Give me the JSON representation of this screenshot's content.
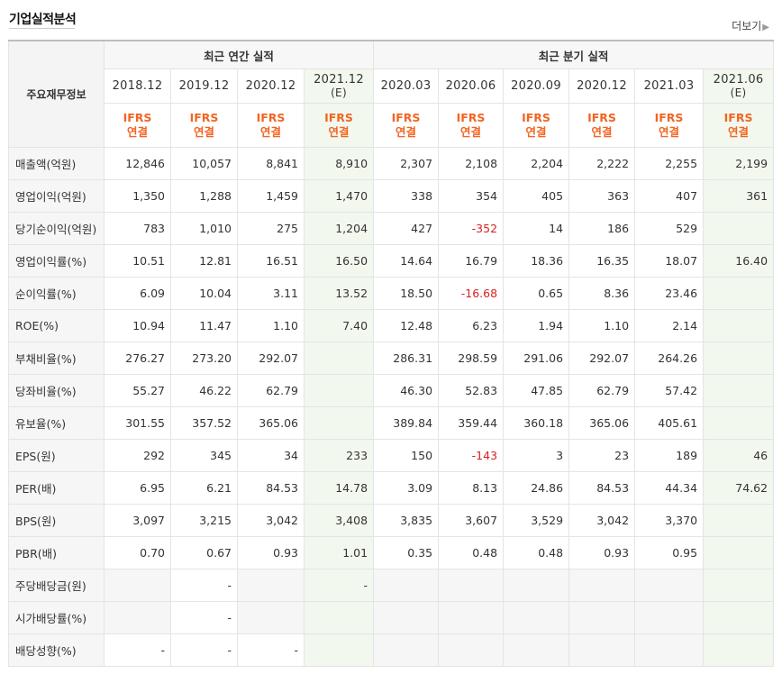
{
  "title": "기업실적분석",
  "more_label": "더보기",
  "more_arrow": "▶",
  "header": {
    "row_label": "주요재무정보",
    "annual_group": "최근 연간 실적",
    "quarterly_group": "최근 분기 실적",
    "periods": [
      "2018.12",
      "2019.12",
      "2020.12",
      "2021.12",
      "2020.03",
      "2020.06",
      "2020.09",
      "2020.12",
      "2021.03",
      "2021.06"
    ],
    "estimate_mark": "(E)",
    "ifrs_line1": "IFRS",
    "ifrs_line2": "연결"
  },
  "rows": [
    {
      "label": "매출액(억원)",
      "values": [
        "12,846",
        "10,057",
        "8,841",
        "8,910",
        "2,307",
        "2,108",
        "2,204",
        "2,222",
        "2,255",
        "2,199"
      ]
    },
    {
      "label": "영업이익(억원)",
      "values": [
        "1,350",
        "1,288",
        "1,459",
        "1,470",
        "338",
        "354",
        "405",
        "363",
        "407",
        "361"
      ]
    },
    {
      "label": "당기순이익(억원)",
      "values": [
        "783",
        "1,010",
        "275",
        "1,204",
        "427",
        "-352",
        "14",
        "186",
        "529",
        ""
      ]
    },
    {
      "label": "영업이익률(%)",
      "values": [
        "10.51",
        "12.81",
        "16.51",
        "16.50",
        "14.64",
        "16.79",
        "18.36",
        "16.35",
        "18.07",
        "16.40"
      ]
    },
    {
      "label": "순이익률(%)",
      "values": [
        "6.09",
        "10.04",
        "3.11",
        "13.52",
        "18.50",
        "-16.68",
        "0.65",
        "8.36",
        "23.46",
        ""
      ]
    },
    {
      "label": "ROE(%)",
      "values": [
        "10.94",
        "11.47",
        "1.10",
        "7.40",
        "12.48",
        "6.23",
        "1.94",
        "1.10",
        "2.14",
        ""
      ]
    },
    {
      "label": "부채비율(%)",
      "values": [
        "276.27",
        "273.20",
        "292.07",
        "",
        "286.31",
        "298.59",
        "291.06",
        "292.07",
        "264.26",
        ""
      ]
    },
    {
      "label": "당좌비율(%)",
      "values": [
        "55.27",
        "46.22",
        "62.79",
        "",
        "46.30",
        "52.83",
        "47.85",
        "62.79",
        "57.42",
        ""
      ]
    },
    {
      "label": "유보율(%)",
      "values": [
        "301.55",
        "357.52",
        "365.06",
        "",
        "389.84",
        "359.44",
        "360.18",
        "365.06",
        "405.61",
        ""
      ]
    },
    {
      "label": "EPS(원)",
      "values": [
        "292",
        "345",
        "34",
        "233",
        "150",
        "-143",
        "3",
        "23",
        "189",
        "46"
      ]
    },
    {
      "label": "PER(배)",
      "values": [
        "6.95",
        "6.21",
        "84.53",
        "14.78",
        "3.09",
        "8.13",
        "24.86",
        "84.53",
        "44.34",
        "74.62"
      ]
    },
    {
      "label": "BPS(원)",
      "values": [
        "3,097",
        "3,215",
        "3,042",
        "3,408",
        "3,835",
        "3,607",
        "3,529",
        "3,042",
        "3,370",
        ""
      ]
    },
    {
      "label": "PBR(배)",
      "values": [
        "0.70",
        "0.67",
        "0.93",
        "1.01",
        "0.35",
        "0.48",
        "0.48",
        "0.93",
        "0.95",
        ""
      ]
    },
    {
      "label": "주당배당금(원)",
      "values": [
        "",
        "-",
        "",
        "-",
        "",
        "",
        "",
        "",
        "",
        ""
      ]
    },
    {
      "label": "시가배당률(%)",
      "values": [
        "",
        "-",
        "",
        "",
        "",
        "",
        "",
        "",
        "",
        ""
      ]
    },
    {
      "label": "배당성향(%)",
      "values": [
        "-",
        "-",
        "-",
        "",
        "",
        "",
        "",
        "",
        "",
        ""
      ]
    }
  ]
}
